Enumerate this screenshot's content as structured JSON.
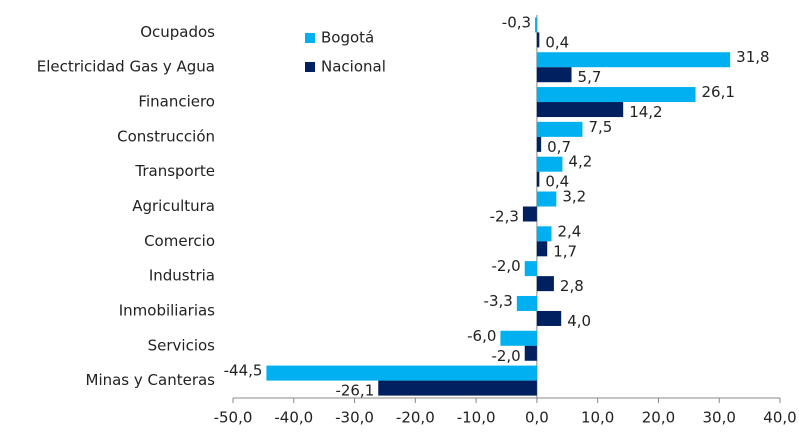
{
  "chart_data": {
    "type": "barh",
    "categories": [
      "Ocupados",
      "Electricidad Gas y Agua",
      "Financiero",
      "Construcción",
      "Transporte",
      "Agricultura",
      "Comercio",
      "Industria",
      "Inmobiliarias",
      "Servicios",
      "Minas y Canteras"
    ],
    "series": [
      {
        "name": "Bogotá",
        "color": "#00b0f0",
        "values": [
          -0.3,
          31.8,
          26.1,
          7.5,
          4.2,
          3.2,
          2.4,
          -2.0,
          -3.3,
          -6.0,
          -44.5
        ],
        "value_labels": [
          "-0,3",
          "31,8",
          "26,1",
          "7,5",
          "4,2",
          "3,2",
          "2,4",
          "-2,0",
          "-3,3",
          "-6,0",
          "-44,5"
        ]
      },
      {
        "name": "Nacional",
        "color": "#002060",
        "values": [
          0.4,
          5.7,
          14.2,
          0.7,
          0.4,
          -2.3,
          1.7,
          2.8,
          4.0,
          -2.0,
          -26.1
        ],
        "value_labels": [
          "0,4",
          "5,7",
          "14,2",
          "0,7",
          "0,4",
          "-2,3",
          "1,7",
          "2,8",
          "4,0",
          "-2,0",
          "-26,1"
        ]
      }
    ],
    "xlim": [
      -50,
      40
    ],
    "xticks": [
      {
        "value": -50,
        "label": "-50,0"
      },
      {
        "value": -40,
        "label": "-40,0"
      },
      {
        "value": -30,
        "label": "-30,0"
      },
      {
        "value": -20,
        "label": "-20,0"
      },
      {
        "value": -10,
        "label": "-10,0"
      },
      {
        "value": 0,
        "label": "0,0"
      },
      {
        "value": 10,
        "label": "10,0"
      },
      {
        "value": 20,
        "label": "20,0"
      },
      {
        "value": 30,
        "label": "30,0"
      },
      {
        "value": 40,
        "label": "40,0"
      }
    ],
    "grid": false
  }
}
